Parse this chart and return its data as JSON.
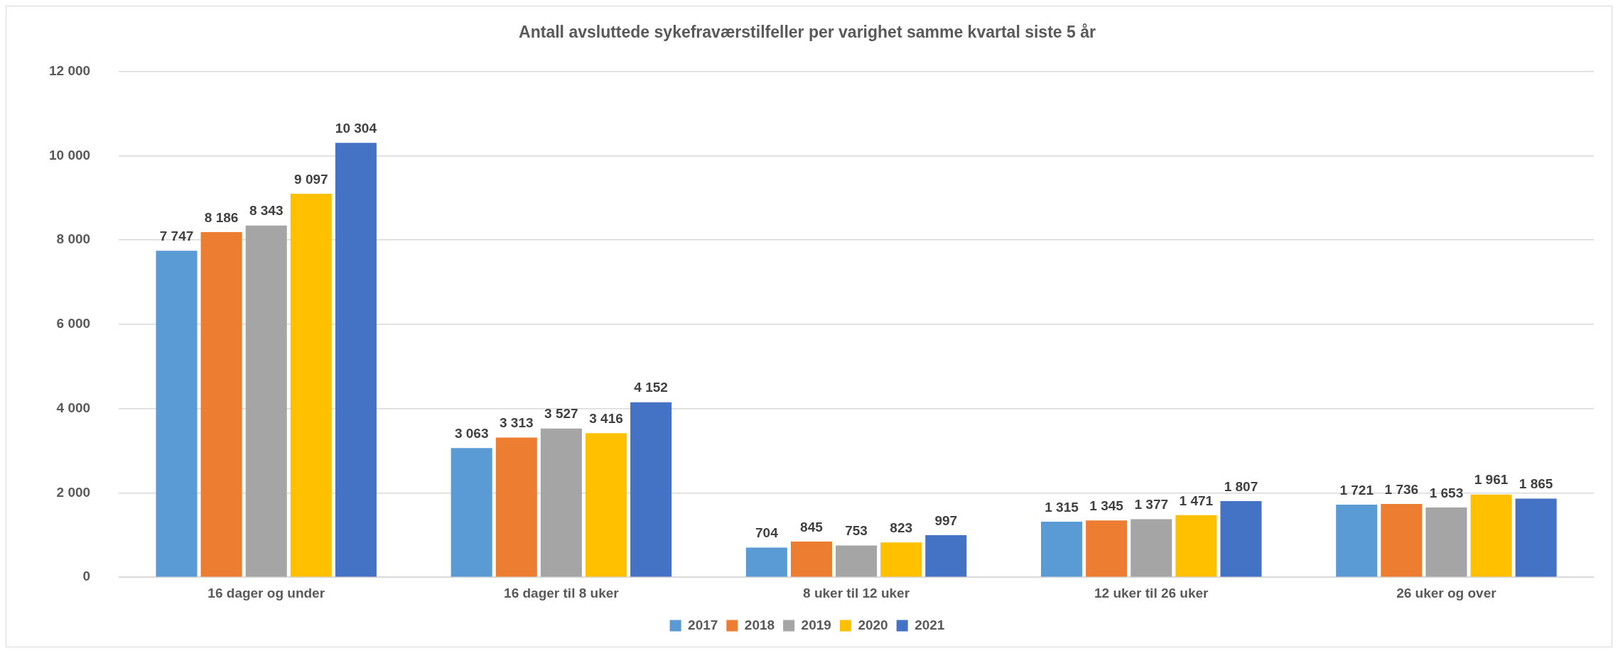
{
  "chart_data": {
    "type": "bar",
    "title": "Antall avsluttede sykefraværstilfeller per varighet samme kvartal siste 5 år",
    "categories": [
      "16 dager og under",
      "16 dager til 8 uker",
      "8 uker til 12 uker",
      "12 uker til 26 uker",
      "26 uker og over"
    ],
    "series": [
      {
        "name": "2017",
        "color": "#5b9bd5",
        "values": [
          7747,
          3063,
          704,
          1315,
          1721
        ],
        "value_labels": [
          "7 747",
          "3 063",
          "704",
          "1 315",
          "1 721"
        ]
      },
      {
        "name": "2018",
        "color": "#ed7d31",
        "values": [
          8186,
          3313,
          845,
          1345,
          1736
        ],
        "value_labels": [
          "8 186",
          "3 313",
          "845",
          "1 345",
          "1 736"
        ]
      },
      {
        "name": "2019",
        "color": "#a5a5a5",
        "values": [
          8343,
          3527,
          753,
          1377,
          1653
        ],
        "value_labels": [
          "8 343",
          "3 527",
          "753",
          "1 377",
          "1 653"
        ]
      },
      {
        "name": "2020",
        "color": "#ffc000",
        "values": [
          9097,
          3416,
          823,
          1471,
          1961
        ],
        "value_labels": [
          "9 097",
          "3 416",
          "823",
          "1 471",
          "1 961"
        ]
      },
      {
        "name": "2021",
        "color": "#4472c4",
        "values": [
          10304,
          4152,
          997,
          1807,
          1865
        ],
        "value_labels": [
          "10 304",
          "4 152",
          "997",
          "1 807",
          "1 865"
        ]
      }
    ],
    "ylim": [
      0,
      12000
    ],
    "yticks": [
      {
        "value": 0,
        "label": "0"
      },
      {
        "value": 2000,
        "label": "2 000"
      },
      {
        "value": 4000,
        "label": "4 000"
      },
      {
        "value": 6000,
        "label": "6 000"
      },
      {
        "value": 8000,
        "label": "8 000"
      },
      {
        "value": 10000,
        "label": "10 000"
      },
      {
        "value": 12000,
        "label": "12 000"
      }
    ],
    "grid": "y",
    "legend": "bottom"
  }
}
